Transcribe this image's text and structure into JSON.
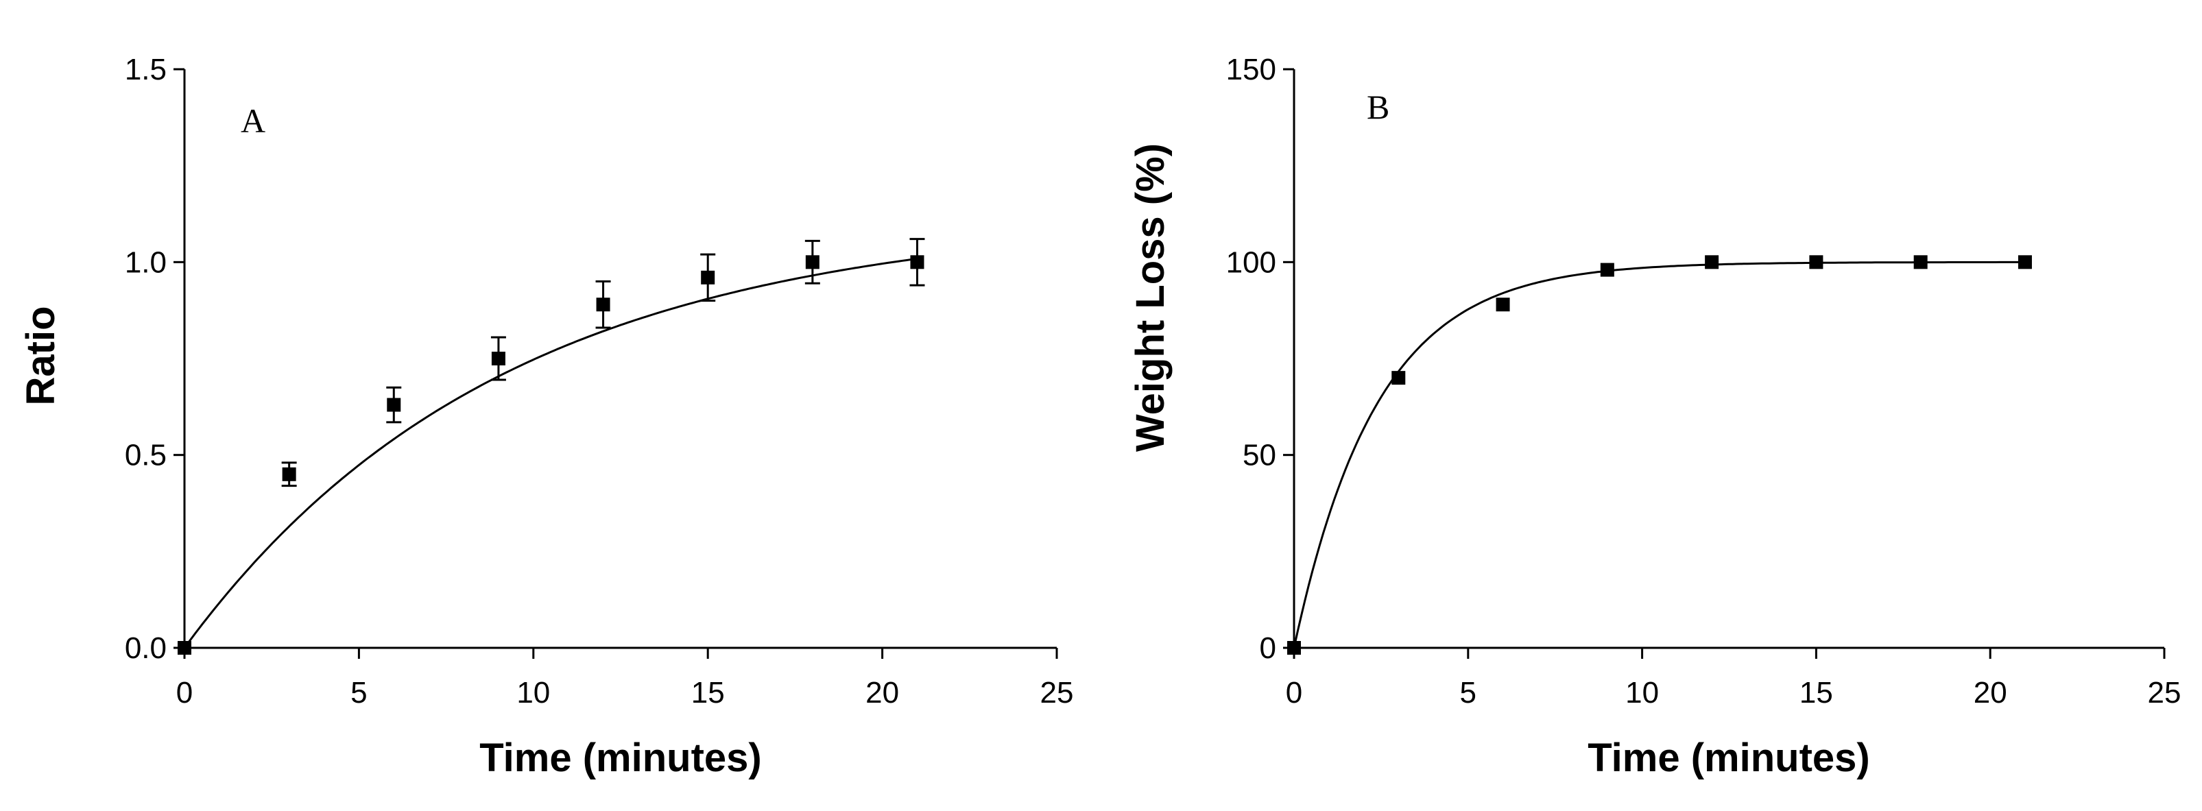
{
  "chart_data": [
    {
      "type": "scatter",
      "panel_label": "A",
      "xlabel": "Time (minutes)",
      "ylabel": "Ratio",
      "xlim": [
        0,
        25
      ],
      "ylim": [
        0,
        1.5
      ],
      "x_ticks": [
        0,
        5,
        10,
        15,
        20,
        25
      ],
      "x_tick_labels": [
        "0",
        "5",
        "10",
        "15",
        "20",
        "25"
      ],
      "y_ticks": [
        0,
        0.5,
        1.0,
        1.5
      ],
      "y_tick_labels": [
        "0.0",
        "0.5",
        "1.0",
        "1.5"
      ],
      "grid": false,
      "series": [
        {
          "name": "Ratio",
          "marker": "square",
          "x": [
            0,
            3,
            6,
            9,
            12,
            15,
            18,
            21
          ],
          "y": [
            0.0,
            0.45,
            0.63,
            0.75,
            0.89,
            0.96,
            1.0,
            1.0
          ],
          "error": [
            0.0,
            0.03,
            0.045,
            0.055,
            0.06,
            0.06,
            0.055,
            0.06
          ]
        }
      ],
      "fit": {
        "type": "exponential_rise",
        "plateau": 1.12,
        "rate": 0.11
      }
    },
    {
      "type": "scatter",
      "panel_label": "B",
      "xlabel": "Time (minutes)",
      "ylabel": "Weight Loss (%)",
      "xlim": [
        0,
        25
      ],
      "ylim": [
        0,
        150
      ],
      "x_ticks": [
        0,
        5,
        10,
        15,
        20,
        25
      ],
      "x_tick_labels": [
        "0",
        "5",
        "10",
        "15",
        "20",
        "25"
      ],
      "y_ticks": [
        0,
        50,
        100,
        150
      ],
      "y_tick_labels": [
        "0",
        "50",
        "100",
        "150"
      ],
      "grid": false,
      "series": [
        {
          "name": "Weight Loss",
          "marker": "square",
          "x": [
            0,
            3,
            6,
            9,
            12,
            15,
            18,
            21
          ],
          "y": [
            0,
            70,
            89,
            98,
            100,
            100,
            100,
            100
          ],
          "error": [
            0,
            0,
            0,
            0,
            0,
            0,
            0,
            0
          ]
        }
      ],
      "fit": {
        "type": "exponential_rise",
        "plateau": 100,
        "rate": 0.42
      }
    }
  ]
}
